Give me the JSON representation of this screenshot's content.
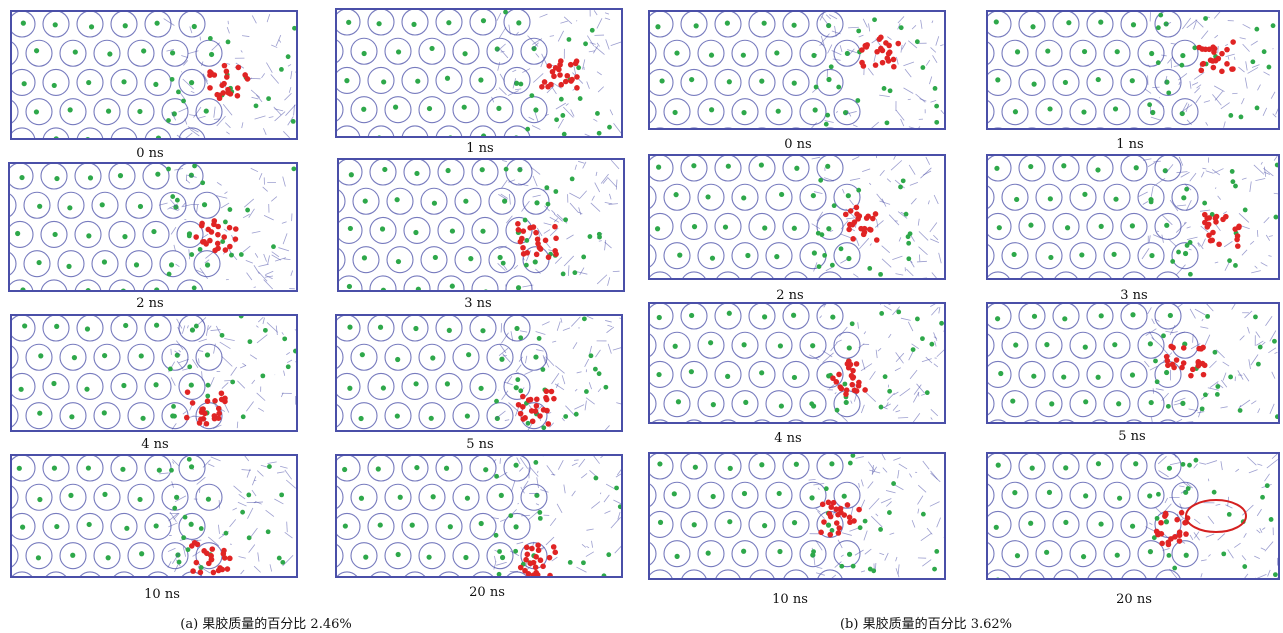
{
  "groups": [
    {
      "caption": "(a) 果胶质量的百分比 2.46%",
      "frames": [
        "0 ns",
        "1 ns",
        "2 ns",
        "3 ns",
        "4 ns",
        "5 ns",
        "10 ns",
        "20 ns"
      ]
    },
    {
      "caption": "(b) 果胶质量的百分比 3.62%",
      "frames": [
        "0 ns",
        "1 ns",
        "2 ns",
        "3 ns",
        "4 ns",
        "5 ns",
        "10 ns",
        "20 ns"
      ]
    }
  ],
  "colors": {
    "framework": "#4a4fa8",
    "ions": "#2ea84a",
    "pectin": "#e02424",
    "highlight_ring": "#d42020"
  }
}
